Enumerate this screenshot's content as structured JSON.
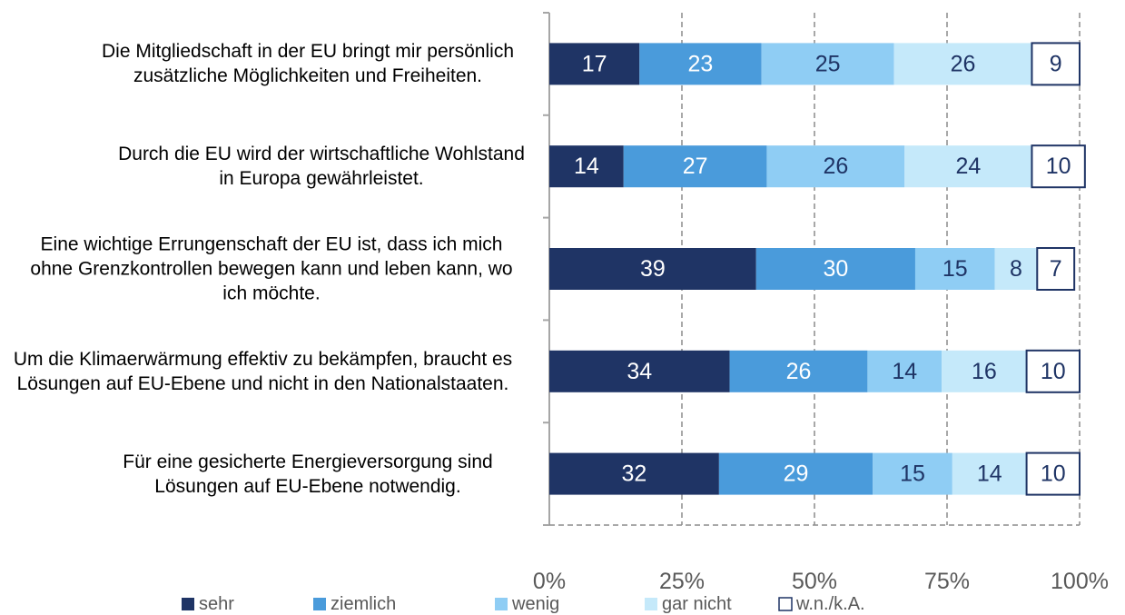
{
  "chart_data": {
    "type": "stacked_barh",
    "categories": [
      "Die Mitgliedschaft in der EU bringt mir persönlich zusätzliche Möglichkeiten und Freiheiten.",
      "Durch die EU wird der wirtschaftliche Wohlstand in Europa gewährleistet.",
      "Eine wichtige Errungenschaft der EU ist, dass ich mich ohne Grenzkontrollen bewegen kann und leben kann, wo ich möchte.",
      "Um die Klimaerwärmung effektiv zu bekämpfen, braucht es Lösungen auf EU-Ebene und nicht in den Nationalstaaten.",
      "Für eine gesicherte Energieversorgung sind Lösungen auf EU-Ebene notwendig."
    ],
    "series": [
      {
        "name": "sehr",
        "color": "#1f3465",
        "values": [
          17,
          14,
          39,
          34,
          32
        ]
      },
      {
        "name": "ziemlich",
        "color": "#4a9bdb",
        "values": [
          23,
          27,
          30,
          26,
          29
        ]
      },
      {
        "name": "wenig",
        "color": "#8fcdf4",
        "values": [
          25,
          26,
          15,
          14,
          15
        ]
      },
      {
        "name": "gar nicht",
        "color": "#c5e9fa",
        "values": [
          26,
          24,
          8,
          16,
          14
        ]
      },
      {
        "name": "w.n./k.A.",
        "color": "#ffffff",
        "values": [
          9,
          10,
          7,
          10,
          10
        ]
      }
    ],
    "xlim": [
      0,
      100
    ],
    "xticks": [
      {
        "value": 0,
        "label": "0%"
      },
      {
        "value": 25,
        "label": "25%"
      },
      {
        "value": 50,
        "label": "50%"
      },
      {
        "value": 75,
        "label": "75%"
      },
      {
        "value": 100,
        "label": "100%"
      }
    ],
    "grid": true,
    "legend": "bottom"
  }
}
